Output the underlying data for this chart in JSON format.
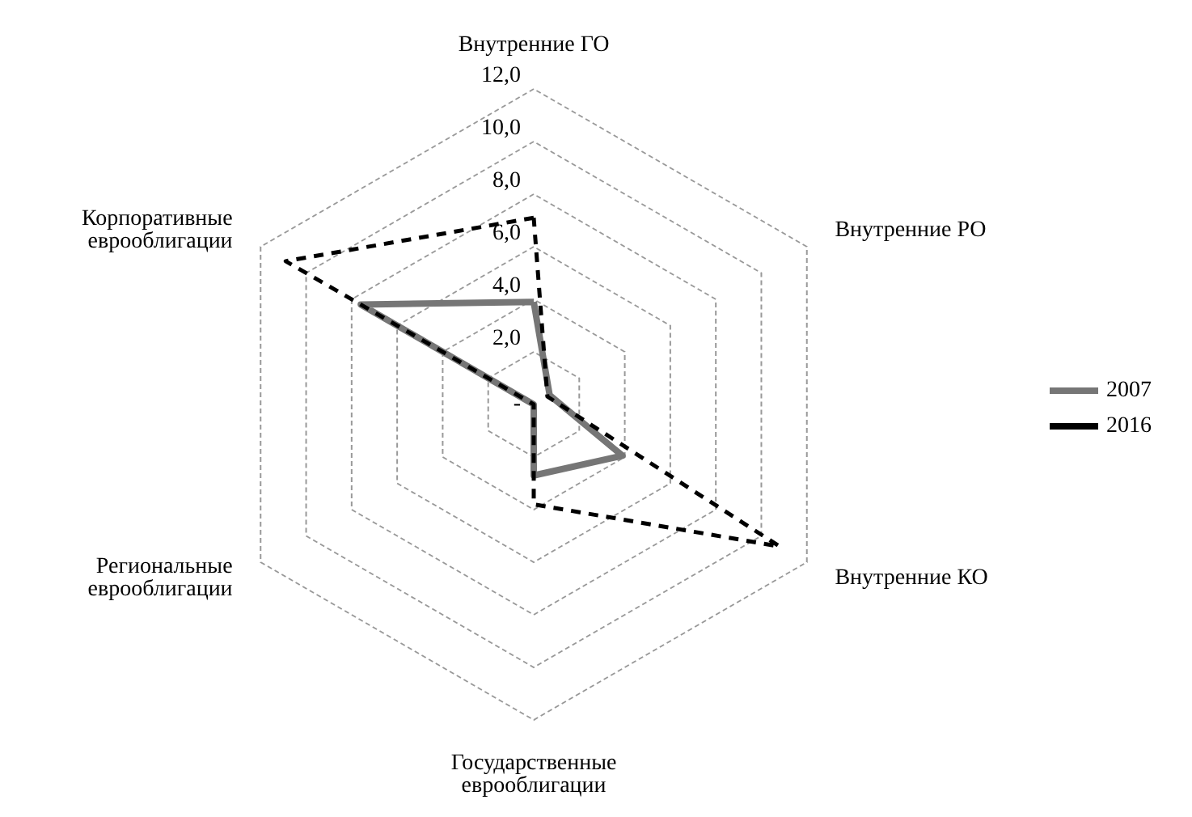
{
  "chart_data": {
    "type": "radar",
    "categories": [
      "Внутренние ГО",
      "Внутренние РО",
      "Внутренние КО",
      "Государственные\nеврооблигации",
      "Региональные\nеврооблигации",
      "Корпоративные\nеврооблигации"
    ],
    "series": [
      {
        "name": "2007",
        "color": "#767676",
        "line_style": "solid",
        "values": [
          3.9,
          0.7,
          3.9,
          2.7,
          0,
          7.6
        ]
      },
      {
        "name": "2016",
        "color": "#000000",
        "line_style": "dashed",
        "values": [
          7.1,
          0.6,
          10.8,
          3.8,
          0,
          10.9
        ]
      }
    ],
    "ylim": [
      0,
      12
    ],
    "yticks": [
      {
        "value": 0,
        "label": "-"
      },
      {
        "value": 2,
        "label": "2,0"
      },
      {
        "value": 4,
        "label": "4,0"
      },
      {
        "value": 6,
        "label": "6,0"
      },
      {
        "value": 8,
        "label": "8,0"
      },
      {
        "value": 10,
        "label": "10,0"
      },
      {
        "value": 12,
        "label": "12,0"
      }
    ],
    "grid": true,
    "legend": "right",
    "marker": "none"
  }
}
